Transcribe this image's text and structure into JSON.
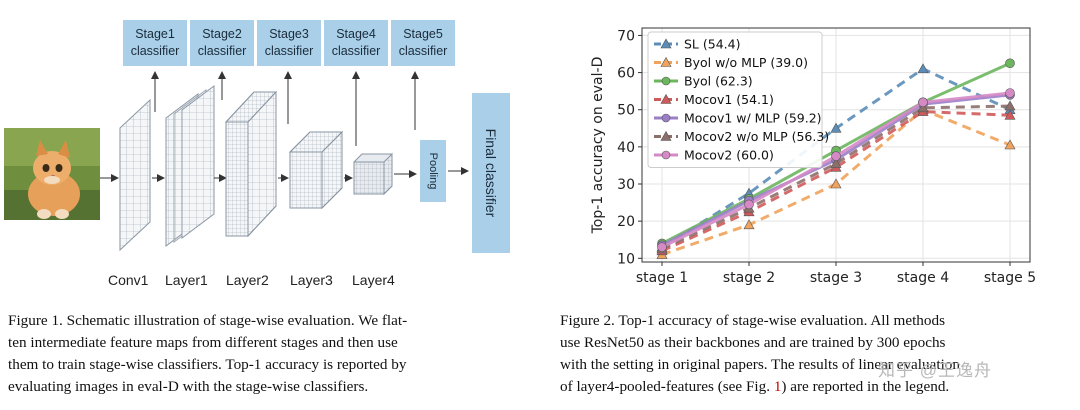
{
  "figure1": {
    "stages": [
      "Stage1",
      "Stage2",
      "Stage3",
      "Stage4",
      "Stage5"
    ],
    "classifier_word": "classifier",
    "layers": [
      "Conv1",
      "Layer1",
      "Layer2",
      "Layer3",
      "Layer4"
    ],
    "pooling": "Pooling",
    "final": "Final classifier",
    "caption_lines": [
      "Figure 1. Schematic illustration of stage-wise evaluation. We flat-",
      "ten intermediate feature maps from different stages and then use",
      "them to train stage-wise classifiers. Top-1 accuracy is reported by",
      "evaluating images in eval-D with the stage-wise classifiers."
    ]
  },
  "figure2": {
    "caption_lines": [
      "Figure 2.  Top-1 accuracy of stage-wise evaluation.  All methods",
      "use ResNet50 as their backbones and are trained by 300 epochs",
      "with the setting in original papers. The results of linear evaluation"
    ],
    "caption_last_prefix": "of layer4-pooled-features (see Fig. ",
    "caption_last_ref": "1",
    "caption_last_suffix": ") are reported in the legend."
  },
  "watermark": "知乎 @王逸舟",
  "chart_data": {
    "type": "line",
    "title": "",
    "xlabel": "",
    "ylabel": "Top-1 accuracy on eval-D",
    "categories": [
      "stage 1",
      "stage 2",
      "stage 3",
      "stage 4",
      "stage 5"
    ],
    "ylim": [
      9,
      72
    ],
    "yticks": [
      10,
      20,
      30,
      40,
      50,
      60,
      70
    ],
    "grid": true,
    "legend_position": "top-left",
    "series": [
      {
        "name": "SL (54.4)",
        "values": [
          13,
          27.5,
          45,
          61,
          50
        ],
        "color": "#5b8db8",
        "dash": "dashed",
        "marker": "triangle"
      },
      {
        "name": "Byol w/o MLP (39.0)",
        "values": [
          11,
          19,
          30,
          50,
          40.5
        ],
        "color": "#f0a35c",
        "dash": "dashed",
        "marker": "triangle"
      },
      {
        "name": "Byol (62.3)",
        "values": [
          14,
          26,
          39,
          52,
          62.5
        ],
        "color": "#6cb65e",
        "dash": "solid",
        "marker": "circle"
      },
      {
        "name": "Mocov1 (54.1)",
        "values": [
          12,
          22.5,
          34.5,
          49.5,
          48.5
        ],
        "color": "#d05a5a",
        "dash": "dashed",
        "marker": "triangle"
      },
      {
        "name": "Mocov1 w/ MLP (59.2)",
        "values": [
          13.5,
          25.5,
          36.5,
          51.5,
          54
        ],
        "color": "#9b7ec8",
        "dash": "solid",
        "marker": "circle"
      },
      {
        "name": "Mocov2 w/o MLP (56.3)",
        "values": [
          12.5,
          23.5,
          35.5,
          50.5,
          51
        ],
        "color": "#8d6f6a",
        "dash": "dashed",
        "marker": "triangle"
      },
      {
        "name": "Mocov2 (60.0)",
        "values": [
          13,
          24.5,
          37.5,
          52,
          54.5
        ],
        "color": "#d58ac5",
        "dash": "solid",
        "marker": "circle"
      }
    ]
  }
}
